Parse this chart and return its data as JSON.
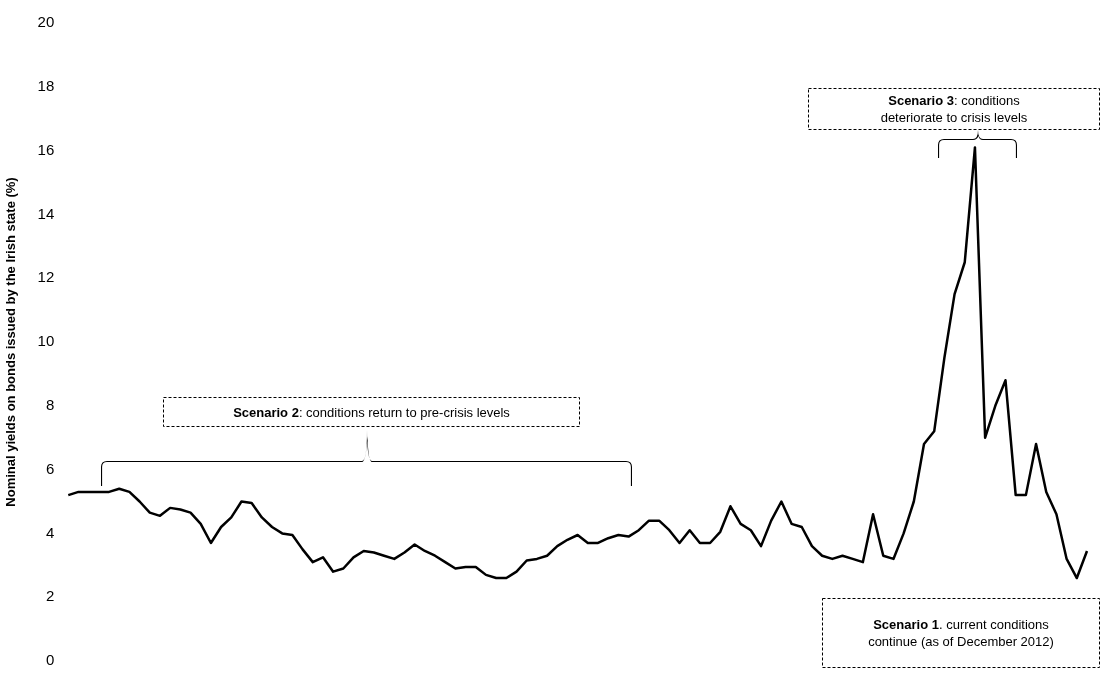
{
  "chart_data": {
    "type": "line",
    "ylabel": "Nominal yields on bonds issued by the Irish state (%)",
    "categories": [
      null,
      null,
      null,
      null,
      null,
      null,
      null,
      null,
      null,
      null,
      null,
      null,
      null,
      null,
      null,
      null,
      null,
      null,
      null,
      null,
      null,
      null,
      null,
      null,
      null,
      null,
      null,
      null,
      null,
      null,
      null,
      null,
      null,
      null,
      null,
      null,
      null,
      null,
      null,
      null,
      null,
      null,
      null,
      null,
      null,
      null,
      null,
      null,
      null,
      null,
      null,
      null,
      null,
      null,
      null,
      null,
      null,
      null,
      null,
      null,
      null,
      null,
      null,
      null,
      null,
      null,
      null,
      null,
      null,
      null,
      null,
      null,
      null,
      null,
      null,
      null,
      null,
      null,
      null,
      null,
      null,
      null,
      null,
      null,
      null,
      null,
      null,
      null,
      null,
      null,
      null,
      null,
      null,
      null,
      null,
      null,
      null,
      null,
      null,
      null,
      null
    ],
    "values": [
      5.2,
      5.3,
      5.3,
      5.3,
      5.3,
      5.4,
      5.3,
      5.0,
      4.65,
      4.55,
      4.8,
      4.75,
      4.65,
      4.3,
      3.7,
      4.2,
      4.5,
      5.0,
      4.95,
      4.5,
      4.2,
      4.0,
      3.95,
      3.5,
      3.1,
      3.25,
      2.8,
      2.9,
      3.25,
      3.45,
      3.4,
      3.3,
      3.2,
      3.4,
      3.65,
      3.45,
      3.3,
      3.1,
      2.9,
      2.95,
      2.95,
      2.7,
      2.6,
      2.6,
      2.8,
      3.15,
      3.2,
      3.3,
      3.6,
      3.8,
      3.95,
      3.7,
      3.7,
      3.85,
      3.95,
      3.9,
      4.1,
      4.4,
      4.4,
      4.1,
      3.7,
      4.1,
      3.7,
      3.7,
      4.05,
      4.85,
      4.3,
      4.1,
      3.6,
      4.4,
      5.0,
      4.3,
      4.2,
      3.6,
      3.3,
      3.2,
      3.3,
      3.2,
      3.1,
      4.6,
      3.3,
      3.2,
      4.0,
      5.0,
      6.8,
      7.2,
      9.5,
      11.5,
      12.5,
      16.1,
      7.0,
      8.0,
      8.8,
      5.2,
      5.2,
      6.8,
      5.3,
      4.6,
      3.2,
      2.6,
      3.45
    ],
    "color": "#000000",
    "ylim": [
      0,
      20
    ],
    "yticks": [
      0,
      2,
      4,
      6,
      8,
      10,
      12,
      14,
      16,
      18,
      20
    ],
    "annotations": [
      "Scenario 2: conditions return to pre-crisis levels",
      "Scenario 3: conditions deteriorate to crisis levels",
      "Scenario 1. current conditions continue (as of December 2012)"
    ]
  }
}
